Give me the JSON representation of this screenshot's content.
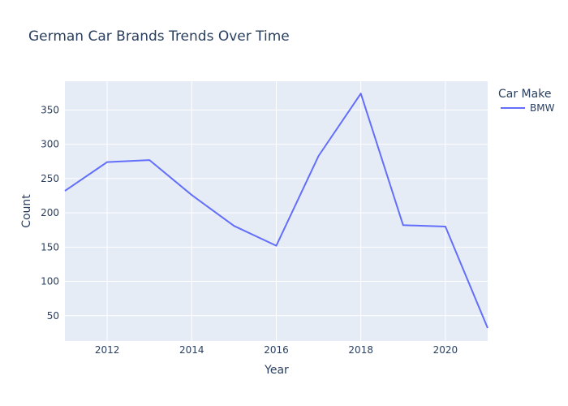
{
  "chart_data": {
    "type": "line",
    "title": "German Car Brands Trends Over Time",
    "xlabel": "Year",
    "ylabel": "Count",
    "xlim": [
      2011,
      2021
    ],
    "ylim": [
      13,
      392
    ],
    "xticks": [
      2012,
      2014,
      2016,
      2018,
      2020
    ],
    "yticks": [
      50,
      100,
      150,
      200,
      250,
      300,
      350
    ],
    "grid": true,
    "background": "#e5ecf6",
    "legend": {
      "title": "Car Make",
      "placement": "right"
    },
    "series": [
      {
        "name": "BMW",
        "color": "#636efa",
        "x": [
          2011,
          2012,
          2013,
          2014,
          2015,
          2016,
          2017,
          2018,
          2019,
          2020,
          2021
        ],
        "y": [
          232,
          274,
          277,
          226,
          181,
          152,
          283,
          374,
          182,
          180,
          32
        ]
      }
    ]
  }
}
